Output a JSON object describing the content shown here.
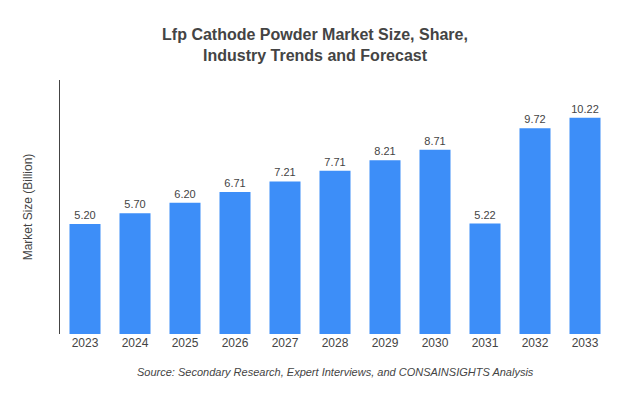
{
  "chart_data": {
    "type": "bar",
    "title": "Lfp Cathode Powder Market Size, Share,\nIndustry Trends and Forecast",
    "ylabel": "Market Size (Billion)",
    "annotations": [
      "Source: Secondary Research, Expert Interviews, and CONSAINSIGHTS Analysis"
    ],
    "categories": [
      "2023",
      "2024",
      "2025",
      "2026",
      "2027",
      "2028",
      "2029",
      "2030",
      "2031",
      "2032",
      "2033"
    ],
    "values": [
      5.2,
      5.7,
      6.2,
      6.71,
      7.21,
      7.71,
      8.21,
      8.71,
      5.22,
      9.72,
      10.22
    ],
    "value_labels": [
      "5.20",
      "5.70",
      "6.20",
      "6.71",
      "7.21",
      "7.71",
      "8.21",
      "8.71",
      "5.22",
      "9.72",
      "10.22"
    ],
    "data_labels": true,
    "color": "#3d8ef8",
    "ylim": [
      0,
      12.0
    ],
    "yticks": [],
    "tick_labels": "x",
    "grid": false
  }
}
